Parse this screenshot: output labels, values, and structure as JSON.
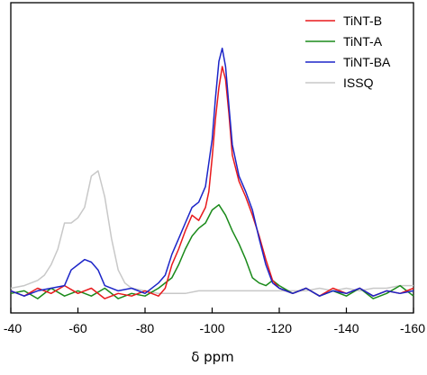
{
  "chart_data": {
    "type": "line",
    "xlabel": "δ ppm",
    "ylabel": "",
    "xlim": [
      -40,
      -160
    ],
    "x_ticks": [
      -40,
      -60,
      -80,
      -100,
      -120,
      -140,
      -160
    ],
    "x_tick_labels": [
      "-40",
      "-60",
      "-80",
      "-100",
      "-120",
      "-140",
      "-160"
    ],
    "y_ticks_visible": false,
    "ylim": [
      0,
      1
    ],
    "grid": false,
    "legend_position": "top-right",
    "series": [
      {
        "name": "TiNT-B",
        "color": "#e8191c",
        "points": [
          [
            -40,
            0.04
          ],
          [
            -44,
            0.02
          ],
          [
            -48,
            0.05
          ],
          [
            -52,
            0.03
          ],
          [
            -56,
            0.06
          ],
          [
            -60,
            0.03
          ],
          [
            -64,
            0.05
          ],
          [
            -68,
            0.01
          ],
          [
            -72,
            0.03
          ],
          [
            -76,
            0.02
          ],
          [
            -80,
            0.04
          ],
          [
            -84,
            0.02
          ],
          [
            -86,
            0.05
          ],
          [
            -88,
            0.14
          ],
          [
            -90,
            0.2
          ],
          [
            -92,
            0.27
          ],
          [
            -94,
            0.33
          ],
          [
            -96,
            0.31
          ],
          [
            -98,
            0.36
          ],
          [
            -99,
            0.42
          ],
          [
            -100,
            0.55
          ],
          [
            -101,
            0.7
          ],
          [
            -102,
            0.82
          ],
          [
            -103,
            0.9
          ],
          [
            -104,
            0.85
          ],
          [
            -105,
            0.72
          ],
          [
            -106,
            0.56
          ],
          [
            -108,
            0.46
          ],
          [
            -110,
            0.4
          ],
          [
            -112,
            0.33
          ],
          [
            -114,
            0.25
          ],
          [
            -116,
            0.16
          ],
          [
            -118,
            0.08
          ],
          [
            -120,
            0.05
          ],
          [
            -124,
            0.03
          ],
          [
            -128,
            0.05
          ],
          [
            -132,
            0.02
          ],
          [
            -136,
            0.05
          ],
          [
            -140,
            0.03
          ],
          [
            -144,
            0.05
          ],
          [
            -148,
            0.02
          ],
          [
            -152,
            0.04
          ],
          [
            -156,
            0.03
          ],
          [
            -160,
            0.05
          ]
        ]
      },
      {
        "name": "TiNT-A",
        "color": "#1a8a1a",
        "points": [
          [
            -40,
            0.03
          ],
          [
            -44,
            0.04
          ],
          [
            -48,
            0.01
          ],
          [
            -52,
            0.05
          ],
          [
            -56,
            0.02
          ],
          [
            -60,
            0.04
          ],
          [
            -64,
            0.02
          ],
          [
            -68,
            0.05
          ],
          [
            -72,
            0.01
          ],
          [
            -76,
            0.03
          ],
          [
            -80,
            0.02
          ],
          [
            -84,
            0.05
          ],
          [
            -88,
            0.09
          ],
          [
            -90,
            0.14
          ],
          [
            -92,
            0.2
          ],
          [
            -94,
            0.25
          ],
          [
            -96,
            0.28
          ],
          [
            -98,
            0.3
          ],
          [
            -100,
            0.35
          ],
          [
            -102,
            0.37
          ],
          [
            -104,
            0.33
          ],
          [
            -106,
            0.27
          ],
          [
            -108,
            0.22
          ],
          [
            -110,
            0.16
          ],
          [
            -112,
            0.09
          ],
          [
            -114,
            0.07
          ],
          [
            -116,
            0.06
          ],
          [
            -118,
            0.08
          ],
          [
            -120,
            0.06
          ],
          [
            -124,
            0.03
          ],
          [
            -128,
            0.05
          ],
          [
            -132,
            0.02
          ],
          [
            -136,
            0.04
          ],
          [
            -140,
            0.02
          ],
          [
            -144,
            0.05
          ],
          [
            -148,
            0.01
          ],
          [
            -152,
            0.03
          ],
          [
            -156,
            0.06
          ],
          [
            -160,
            0.02
          ]
        ]
      },
      {
        "name": "TiNT-BA",
        "color": "#1c25c8",
        "points": [
          [
            -40,
            0.04
          ],
          [
            -44,
            0.02
          ],
          [
            -48,
            0.04
          ],
          [
            -52,
            0.05
          ],
          [
            -56,
            0.06
          ],
          [
            -58,
            0.12
          ],
          [
            -60,
            0.14
          ],
          [
            -62,
            0.16
          ],
          [
            -64,
            0.15
          ],
          [
            -66,
            0.12
          ],
          [
            -68,
            0.06
          ],
          [
            -72,
            0.04
          ],
          [
            -76,
            0.05
          ],
          [
            -80,
            0.03
          ],
          [
            -84,
            0.07
          ],
          [
            -86,
            0.1
          ],
          [
            -88,
            0.18
          ],
          [
            -90,
            0.24
          ],
          [
            -92,
            0.3
          ],
          [
            -94,
            0.36
          ],
          [
            -96,
            0.38
          ],
          [
            -98,
            0.44
          ],
          [
            -100,
            0.62
          ],
          [
            -101,
            0.78
          ],
          [
            -102,
            0.92
          ],
          [
            -103,
            0.97
          ],
          [
            -104,
            0.9
          ],
          [
            -105,
            0.75
          ],
          [
            -106,
            0.6
          ],
          [
            -108,
            0.48
          ],
          [
            -110,
            0.42
          ],
          [
            -112,
            0.35
          ],
          [
            -114,
            0.24
          ],
          [
            -116,
            0.14
          ],
          [
            -118,
            0.07
          ],
          [
            -120,
            0.05
          ],
          [
            -124,
            0.03
          ],
          [
            -128,
            0.05
          ],
          [
            -132,
            0.02
          ],
          [
            -136,
            0.04
          ],
          [
            -140,
            0.03
          ],
          [
            -144,
            0.05
          ],
          [
            -148,
            0.02
          ],
          [
            -152,
            0.04
          ],
          [
            -156,
            0.03
          ],
          [
            -160,
            0.04
          ]
        ]
      },
      {
        "name": "ISSQ",
        "color": "#c8c8c8",
        "points": [
          [
            -40,
            0.05
          ],
          [
            -44,
            0.06
          ],
          [
            -48,
            0.08
          ],
          [
            -50,
            0.1
          ],
          [
            -52,
            0.14
          ],
          [
            -54,
            0.2
          ],
          [
            -56,
            0.3
          ],
          [
            -58,
            0.3
          ],
          [
            -60,
            0.32
          ],
          [
            -62,
            0.36
          ],
          [
            -64,
            0.48
          ],
          [
            -66,
            0.5
          ],
          [
            -68,
            0.4
          ],
          [
            -70,
            0.24
          ],
          [
            -72,
            0.12
          ],
          [
            -74,
            0.07
          ],
          [
            -76,
            0.05
          ],
          [
            -80,
            0.04
          ],
          [
            -84,
            0.03
          ],
          [
            -88,
            0.03
          ],
          [
            -92,
            0.03
          ],
          [
            -96,
            0.04
          ],
          [
            -100,
            0.04
          ],
          [
            -104,
            0.04
          ],
          [
            -108,
            0.04
          ],
          [
            -112,
            0.04
          ],
          [
            -116,
            0.04
          ],
          [
            -120,
            0.04
          ],
          [
            -124,
            0.04
          ],
          [
            -128,
            0.04
          ],
          [
            -132,
            0.05
          ],
          [
            -136,
            0.04
          ],
          [
            -140,
            0.05
          ],
          [
            -144,
            0.04
          ],
          [
            -148,
            0.05
          ],
          [
            -152,
            0.05
          ],
          [
            -156,
            0.06
          ],
          [
            -160,
            0.06
          ]
        ]
      }
    ]
  }
}
